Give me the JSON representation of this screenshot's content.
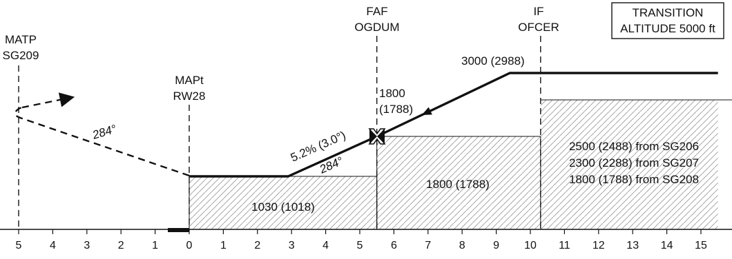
{
  "title": "",
  "transition_box": {
    "line1": "TRANSITION",
    "line2": "ALTITUDE 5000 ft"
  },
  "fixes": [
    {
      "id": "matp",
      "line1": "MATP",
      "line2": "SG209",
      "nm": -5
    },
    {
      "id": "mapt",
      "line1": "MAPt",
      "line2": "RW28",
      "nm": 0
    },
    {
      "id": "faf",
      "line1": "FAF",
      "line2": "OGDUM",
      "nm": 5.5
    },
    {
      "id": "if",
      "line1": "IF",
      "line2": "OFCER",
      "nm": 10.3
    }
  ],
  "axis": {
    "ticks": [
      {
        "nm": -5,
        "label": "5"
      },
      {
        "nm": -4,
        "label": "4"
      },
      {
        "nm": -3,
        "label": "3"
      },
      {
        "nm": -2,
        "label": "2"
      },
      {
        "nm": -1,
        "label": "1"
      },
      {
        "nm": 0,
        "label": "0"
      },
      {
        "nm": 1,
        "label": "1"
      },
      {
        "nm": 2,
        "label": "2"
      },
      {
        "nm": 3,
        "label": "3"
      },
      {
        "nm": 4,
        "label": "4"
      },
      {
        "nm": 5,
        "label": "5"
      },
      {
        "nm": 6,
        "label": "6"
      },
      {
        "nm": 7,
        "label": "7"
      },
      {
        "nm": 8,
        "label": "8"
      },
      {
        "nm": 9,
        "label": "9"
      },
      {
        "nm": 10,
        "label": "10"
      },
      {
        "nm": 11,
        "label": "11"
      },
      {
        "nm": 12,
        "label": "12"
      },
      {
        "nm": 13,
        "label": "13"
      },
      {
        "nm": 14,
        "label": "14"
      },
      {
        "nm": 15,
        "label": "15"
      }
    ]
  },
  "chart_data": {
    "type": "line",
    "profile": [
      {
        "nm": 0,
        "alt_ft": 1030
      },
      {
        "nm": 2.9,
        "alt_ft": 1030
      },
      {
        "nm": 5.5,
        "alt_ft": 1800
      },
      {
        "nm": 9.4,
        "alt_ft": 3000
      },
      {
        "nm": 15.5,
        "alt_ft": 3000
      }
    ],
    "missed_approach": {
      "course_label": "284°",
      "from_nm": 0,
      "to_nm": -5
    },
    "segments": [
      {
        "from_nm": 0,
        "to_nm": 5.5,
        "alt_ft": 1030,
        "label": "1030 (1018)"
      },
      {
        "from_nm": 5.5,
        "to_nm": 10.3,
        "alt_ft": 1800,
        "label": "1800 (1788)"
      },
      {
        "from_nm": 10.3,
        "to_nm": 15.5,
        "alt_ft": 2500,
        "labels": [
          "2500 (2488) from SG206",
          "2300 (2288) from SG207",
          "1800 (1788) from SG208"
        ]
      }
    ],
    "gradient_label": "5.2% (3.0°)",
    "final_course_label": "284°",
    "faf_altitude_label_line1": "1800",
    "faf_altitude_label_line2": "(1788)",
    "initial_altitude_label": "3000 (2988)"
  }
}
